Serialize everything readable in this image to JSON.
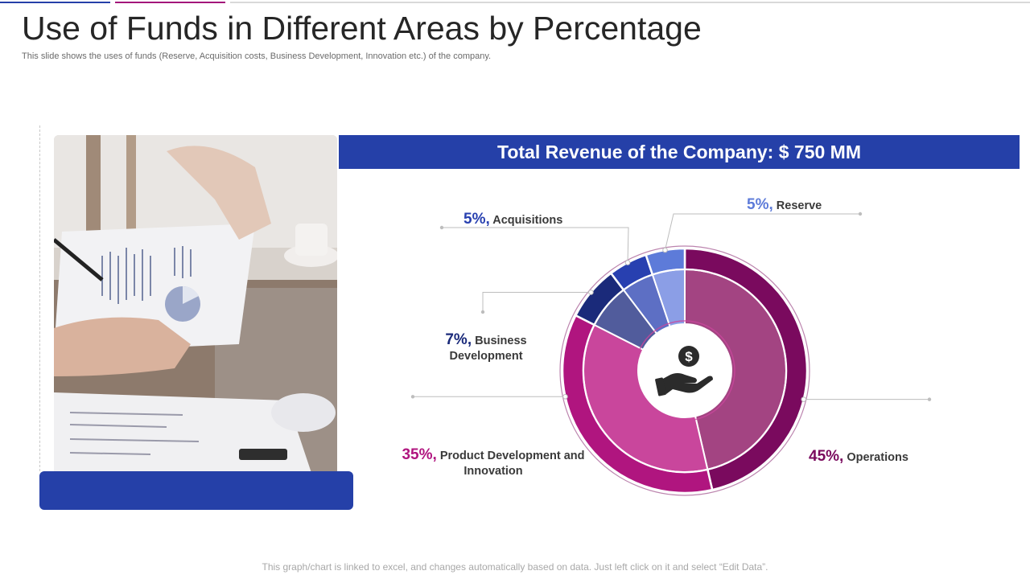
{
  "header": {
    "title": "Use of Funds in Different Areas by Percentage",
    "subtitle": "This slide shows the uses of funds (Reserve, Acquisition costs, Business Development, Innovation etc.) of the company."
  },
  "banner": {
    "text": "Total Revenue of the Company: $ 750 MM"
  },
  "chart_data": {
    "type": "pie",
    "variant": "donut",
    "title": "Total Revenue of the Company: $ 750 MM",
    "slices": [
      {
        "label": "Operations",
        "value": 45,
        "percent_text": "45%,",
        "color": "#7a0a5e",
        "inner_color": "#a34482"
      },
      {
        "label": "Product Development and Innovation",
        "value": 35,
        "percent_text": "35%,",
        "color": "#b0157f",
        "inner_color": "#c9469c"
      },
      {
        "label": "Business Development",
        "value": 7,
        "percent_text": "7%,",
        "color": "#1a2a7a",
        "inner_color": "#515c9c"
      },
      {
        "label": "Acquisitions",
        "value": 5,
        "percent_text": "5%,",
        "color": "#2840b0",
        "inner_color": "#5d6fc4"
      },
      {
        "label": "Reserve",
        "value": 5,
        "percent_text": "5%,",
        "color": "#5d7bd9",
        "inner_color": "#8b9ee6"
      }
    ],
    "center_icon": "hand-holding-dollar-icon"
  },
  "labels": {
    "acquisitions": {
      "pct": "5%,",
      "name": "Acquisitions"
    },
    "reserve": {
      "pct": "5%,",
      "name": "Reserve"
    },
    "business": {
      "pct": "7%,",
      "name_line1": "Business",
      "name_line2": "Development"
    },
    "product": {
      "pct": "35%,",
      "name_line1": "Product Development and",
      "name_line2": "Innovation"
    },
    "operations": {
      "pct": "45%,",
      "name": "Operations"
    }
  },
  "image": {
    "description_icon": "office-documents-photo"
  },
  "footer": {
    "text": "This graph/chart is linked to excel, and changes automatically based on data. Just left click on it and select “Edit Data”."
  },
  "colors": {
    "brand_blue": "#2540a8",
    "operations": "#7a0a5e",
    "product": "#b0157f",
    "business": "#1a2a7a",
    "acquisitions": "#2840b0",
    "reserve": "#5d7bd9",
    "topbar_blue": "#2540a8",
    "topbar_magenta": "#a3157a"
  }
}
